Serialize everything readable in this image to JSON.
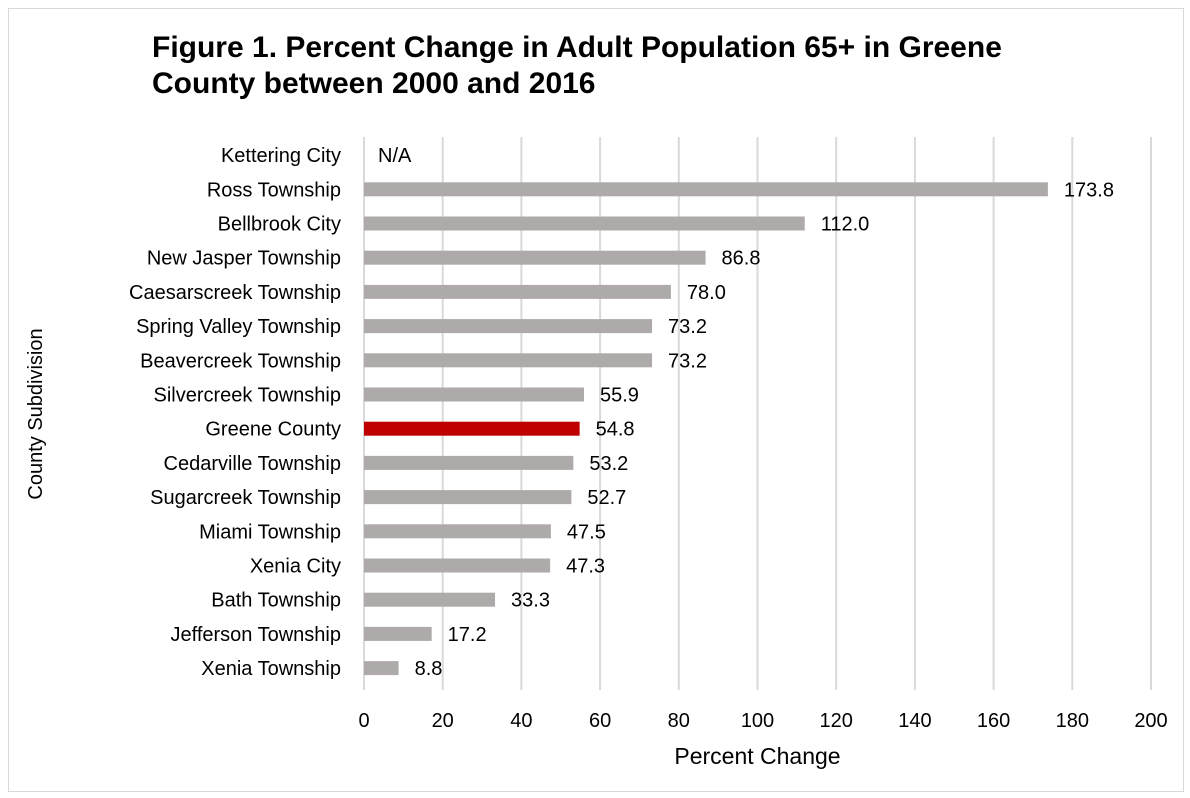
{
  "chart_data": {
    "type": "bar",
    "orientation": "horizontal",
    "title": "Figure 1. Percent Change in Adult Population 65+ in Greene County between 2000 and 2016",
    "title_lines": [
      "Figure 1. Percent Change in Adult Population 65+ in Greene",
      "County between 2000 and 2016"
    ],
    "xlabel": "Percent Change",
    "ylabel": "County Subdivision",
    "xlim": [
      0,
      200
    ],
    "xticks": [
      0,
      20,
      40,
      60,
      80,
      100,
      120,
      140,
      160,
      180,
      200
    ],
    "grid": "vertical",
    "categories": [
      "Kettering City",
      "Ross Township",
      "Bellbrook City",
      "New Jasper Township",
      "Caesarscreek Township",
      "Spring Valley Township",
      "Beavercreek Township",
      "Silvercreek Township",
      "Greene County",
      "Cedarville Township",
      "Sugarcreek Township",
      "Miami Township",
      "Xenia City",
      "Bath Township",
      "Jefferson Township",
      "Xenia Township"
    ],
    "values": [
      null,
      173.8,
      112.0,
      86.8,
      78.0,
      73.2,
      73.2,
      55.9,
      54.8,
      53.2,
      52.7,
      47.5,
      47.3,
      33.3,
      17.2,
      8.8
    ],
    "data_labels": [
      "N/A",
      "173.8",
      "112.0",
      "86.8",
      "78.0",
      "73.2",
      "73.2",
      "55.9",
      "54.8",
      "53.2",
      "52.7",
      "47.5",
      "47.3",
      "33.3",
      "17.2",
      "8.8"
    ],
    "highlight_category": "Greene County",
    "colors": {
      "bar": "#aeaaaa",
      "highlight": "#c00000",
      "grid": "#d9d9d9"
    }
  }
}
